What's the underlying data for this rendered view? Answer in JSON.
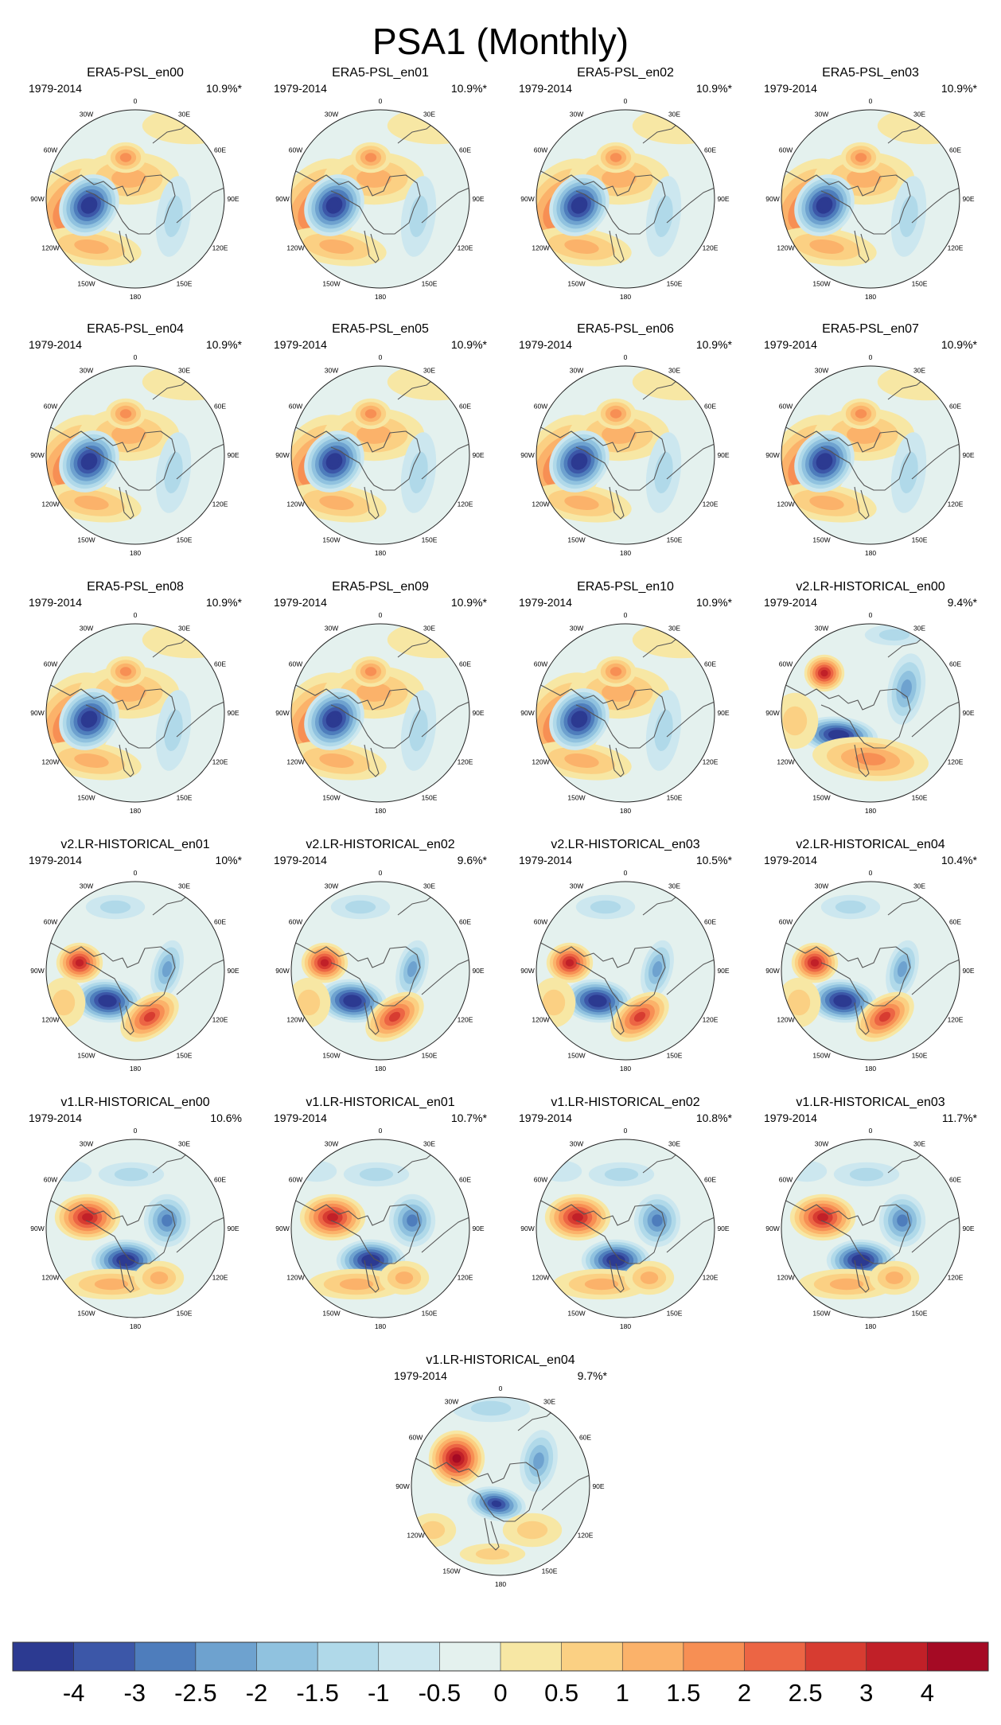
{
  "figure_title": "PSA1 (Monthly)",
  "chart_data": {
    "type": "heatmap",
    "title": "PSA1 (Monthly)",
    "projection": "south polar stereographic",
    "longitude_labels": [
      "0",
      "30E",
      "60E",
      "90E",
      "120E",
      "150E",
      "180",
      "150W",
      "120W",
      "90W",
      "60W",
      "30W"
    ],
    "colorbar": {
      "ticks": [
        "-4",
        "-3",
        "-2.5",
        "-2",
        "-1.5",
        "-1",
        "-0.5",
        "0",
        "0.5",
        "1",
        "1.5",
        "2",
        "2.5",
        "3",
        "4"
      ],
      "colors": [
        "#2c3a91",
        "#3c57a8",
        "#4e7dbc",
        "#6ea2cf",
        "#90c2df",
        "#b0d9e9",
        "#cce7ef",
        "#e4f1ee",
        "#f7e7a4",
        "#fbd083",
        "#fbb26a",
        "#f78f54",
        "#ec6544",
        "#d73c31",
        "#c12028",
        "#a50a24"
      ]
    },
    "panels": [
      {
        "name": "ERA5-PSL_en00",
        "period": "1979-2014",
        "variance": "10.9%*",
        "pattern": "era5"
      },
      {
        "name": "ERA5-PSL_en01",
        "period": "1979-2014",
        "variance": "10.9%*",
        "pattern": "era5"
      },
      {
        "name": "ERA5-PSL_en02",
        "period": "1979-2014",
        "variance": "10.9%*",
        "pattern": "era5"
      },
      {
        "name": "ERA5-PSL_en03",
        "period": "1979-2014",
        "variance": "10.9%*",
        "pattern": "era5"
      },
      {
        "name": "ERA5-PSL_en04",
        "period": "1979-2014",
        "variance": "10.9%*",
        "pattern": "era5"
      },
      {
        "name": "ERA5-PSL_en05",
        "period": "1979-2014",
        "variance": "10.9%*",
        "pattern": "era5"
      },
      {
        "name": "ERA5-PSL_en06",
        "period": "1979-2014",
        "variance": "10.9%*",
        "pattern": "era5"
      },
      {
        "name": "ERA5-PSL_en07",
        "period": "1979-2014",
        "variance": "10.9%*",
        "pattern": "era5"
      },
      {
        "name": "ERA5-PSL_en08",
        "period": "1979-2014",
        "variance": "10.9%*",
        "pattern": "era5"
      },
      {
        "name": "ERA5-PSL_en09",
        "period": "1979-2014",
        "variance": "10.9%*",
        "pattern": "era5"
      },
      {
        "name": "ERA5-PSL_en10",
        "period": "1979-2014",
        "variance": "10.9%*",
        "pattern": "era5"
      },
      {
        "name": "v2.LR-HISTORICAL_en00",
        "period": "1979-2014",
        "variance": "9.4%*",
        "pattern": "v2a"
      },
      {
        "name": "v2.LR-HISTORICAL_en01",
        "period": "1979-2014",
        "variance": "10%*",
        "pattern": "v2b"
      },
      {
        "name": "v2.LR-HISTORICAL_en02",
        "period": "1979-2014",
        "variance": "9.6%*",
        "pattern": "v2b"
      },
      {
        "name": "v2.LR-HISTORICAL_en03",
        "period": "1979-2014",
        "variance": "10.5%*",
        "pattern": "v2b"
      },
      {
        "name": "v2.LR-HISTORICAL_en04",
        "period": "1979-2014",
        "variance": "10.4%*",
        "pattern": "v2b"
      },
      {
        "name": "v1.LR-HISTORICAL_en00",
        "period": "1979-2014",
        "variance": "10.6%",
        "pattern": "v1"
      },
      {
        "name": "v1.LR-HISTORICAL_en01",
        "period": "1979-2014",
        "variance": "10.7%*",
        "pattern": "v1"
      },
      {
        "name": "v1.LR-HISTORICAL_en02",
        "period": "1979-2014",
        "variance": "10.8%*",
        "pattern": "v1"
      },
      {
        "name": "v1.LR-HISTORICAL_en03",
        "period": "1979-2014",
        "variance": "11.7%*",
        "pattern": "v1"
      },
      {
        "name": "v1.LR-HISTORICAL_en04",
        "period": "1979-2014",
        "variance": "9.7%*",
        "pattern": "v1b"
      }
    ]
  }
}
